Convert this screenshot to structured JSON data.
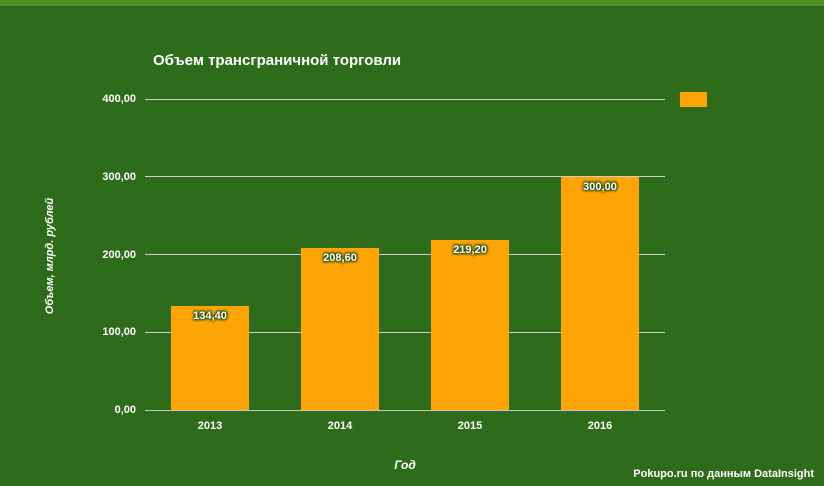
{
  "page": {
    "background_color": "#2e6c1b",
    "top_strip_color": "#4e9223"
  },
  "chart_data": {
    "type": "bar",
    "title": "Объем трансграничной торговли",
    "categories": [
      "2013",
      "2014",
      "2015",
      "2016"
    ],
    "values": [
      134.4,
      208.6,
      219.2,
      300.0
    ],
    "value_labels": [
      "134,40",
      "208,60",
      "219,20",
      "300,00"
    ],
    "xlabel": "Год",
    "ylabel": "Объем, млрд. рублей",
    "ylim": [
      0,
      400
    ],
    "ytick_labels": [
      "0,00",
      "100,00",
      "200,00",
      "300,00",
      "400,00"
    ],
    "grid": true,
    "gridline_color": "#cdcdcd",
    "bar_color": "#FFA405",
    "legend_position": "top-right"
  },
  "footer": {
    "credit": "Pokupo.ru по данным DataInsight"
  }
}
